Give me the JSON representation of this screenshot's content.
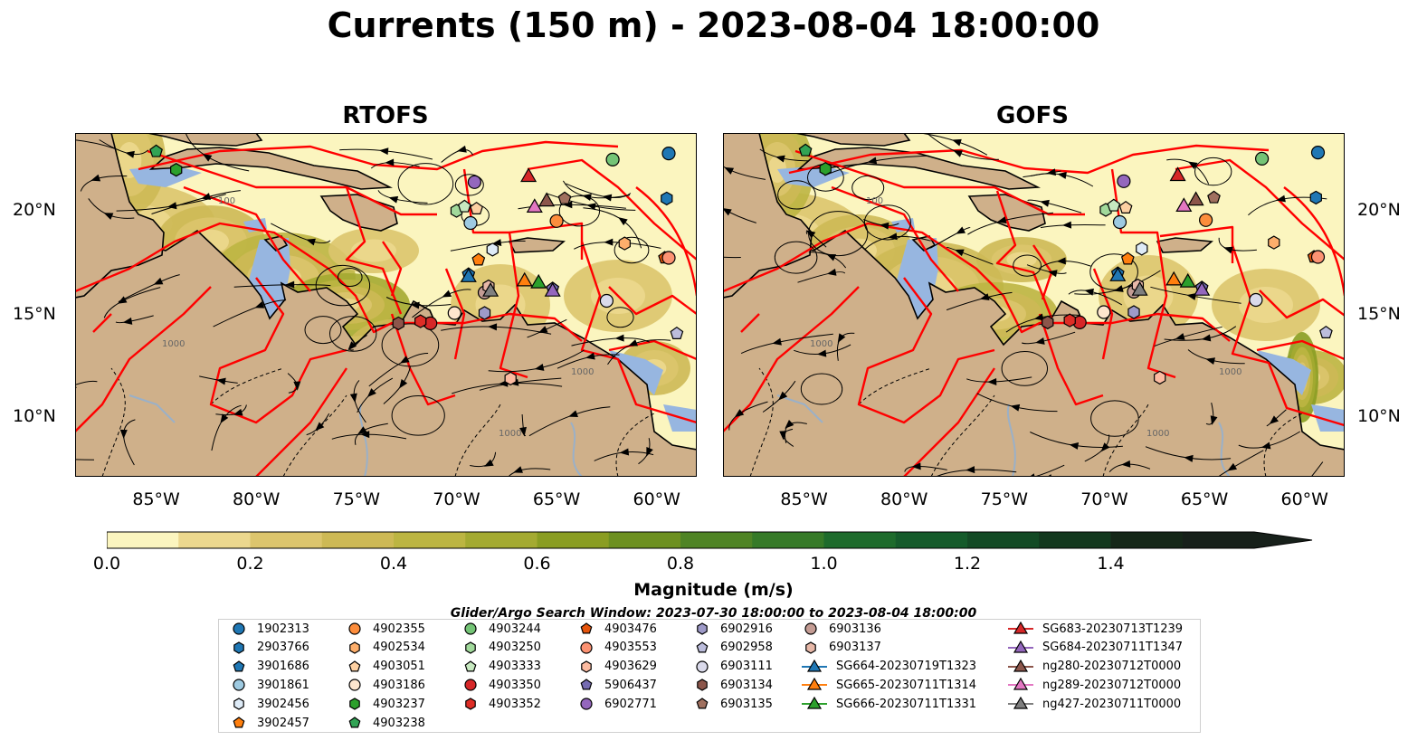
{
  "title": "Currents (150 m) - 2023-08-04 18:00:00",
  "panels": [
    {
      "title": "RTOFS"
    },
    {
      "title": "GOFS"
    }
  ],
  "axes": {
    "y_ticks": [
      "20°N",
      "15°N",
      "10°N"
    ],
    "x_ticks": [
      "85°W",
      "80°W",
      "75°W",
      "70°W",
      "65°W",
      "60°W"
    ]
  },
  "contour_labels": [
    "100",
    "1000"
  ],
  "colorbar": {
    "label": "Magnitude (m/s)",
    "ticks": [
      "0.0",
      "0.2",
      "0.4",
      "0.6",
      "0.8",
      "1.0",
      "1.2",
      "1.4"
    ],
    "colors": [
      "#fbf5bf",
      "#ecd88e",
      "#dcc56d",
      "#cdb955",
      "#bcb542",
      "#a4aa31",
      "#8a9d22",
      "#6d9020",
      "#4f8425",
      "#367a28",
      "#1e6b2c",
      "#155b2b",
      "#134a25",
      "#13381e",
      "#152718",
      "#17201a"
    ]
  },
  "legend": {
    "title": "Glider/Argo Search Window: 2023-07-30 18:00:00 to 2023-08-04 18:00:00",
    "entries": [
      {
        "label": "1902313",
        "marker": "circle",
        "color": "#1f77b4"
      },
      {
        "label": "2903766",
        "marker": "hexagon",
        "color": "#1f77b4"
      },
      {
        "label": "3901686",
        "marker": "pentagon",
        "color": "#1f77b4"
      },
      {
        "label": "3901861",
        "marker": "circle",
        "color": "#9ecae1"
      },
      {
        "label": "3902456",
        "marker": "hexagon",
        "color": "#deebf7"
      },
      {
        "label": "3902457",
        "marker": "pentagon",
        "color": "#ff7f0e"
      },
      {
        "label": "4902355",
        "marker": "circle",
        "color": "#fd8d3c"
      },
      {
        "label": "4902534",
        "marker": "hexagon",
        "color": "#fdae6b"
      },
      {
        "label": "4903051",
        "marker": "pentagon",
        "color": "#fdd0a2"
      },
      {
        "label": "4903186",
        "marker": "circle",
        "color": "#fee6ce"
      },
      {
        "label": "4903237",
        "marker": "hexagon",
        "color": "#2ca02c"
      },
      {
        "label": "4903238",
        "marker": "pentagon",
        "color": "#31a354"
      },
      {
        "label": "4903244",
        "marker": "circle",
        "color": "#74c476"
      },
      {
        "label": "4903250",
        "marker": "hexagon",
        "color": "#a1d99b"
      },
      {
        "label": "4903333",
        "marker": "pentagon",
        "color": "#c7e9c0"
      },
      {
        "label": "4903350",
        "marker": "circle",
        "color": "#d62728"
      },
      {
        "label": "4903352",
        "marker": "hexagon",
        "color": "#de2d26"
      },
      {
        "label": "4903476",
        "marker": "pentagon",
        "color": "#e6550d"
      },
      {
        "label": "4903553",
        "marker": "circle",
        "color": "#fc9272"
      },
      {
        "label": "4903629",
        "marker": "hexagon",
        "color": "#fcbba1"
      },
      {
        "label": "5906437",
        "marker": "pentagon",
        "color": "#756bb1"
      },
      {
        "label": "6902771",
        "marker": "circle",
        "color": "#9467bd"
      },
      {
        "label": "6902916",
        "marker": "hexagon",
        "color": "#9e9ac8"
      },
      {
        "label": "6902958",
        "marker": "pentagon",
        "color": "#bcbddc"
      },
      {
        "label": "6903111",
        "marker": "circle",
        "color": "#dadaeb"
      },
      {
        "label": "6903134",
        "marker": "hexagon",
        "color": "#8c564b"
      },
      {
        "label": "6903135",
        "marker": "pentagon",
        "color": "#a0705f"
      },
      {
        "label": "6903136",
        "marker": "circle",
        "color": "#c49c94"
      },
      {
        "label": "6903137",
        "marker": "hexagon",
        "color": "#e7b8a8"
      },
      {
        "label": "SG664-20230719T1323",
        "marker": "triangle-line",
        "color": "#1f77b4"
      },
      {
        "label": "SG665-20230711T1314",
        "marker": "triangle-line",
        "color": "#ff7f0e"
      },
      {
        "label": "SG666-20230711T1331",
        "marker": "triangle-line",
        "color": "#2ca02c"
      },
      {
        "label": "SG683-20230713T1239",
        "marker": "triangle-line",
        "color": "#d62728"
      },
      {
        "label": "SG684-20230711T1347",
        "marker": "triangle-line",
        "color": "#9467bd"
      },
      {
        "label": "ng280-20230712T0000",
        "marker": "triangle-line",
        "color": "#8c564b"
      },
      {
        "label": "ng289-20230712T0000",
        "marker": "triangle-line",
        "color": "#e377c2"
      },
      {
        "label": "ng427-20230711T0000",
        "marker": "triangle-line",
        "color": "#7f7f7f"
      }
    ]
  },
  "map_colors": {
    "land": "#cfb08a",
    "shallow": "#97b6e0",
    "eez_lines": "#ff0000",
    "streamlines": "#000000",
    "rivers": "#9ab0c8"
  }
}
